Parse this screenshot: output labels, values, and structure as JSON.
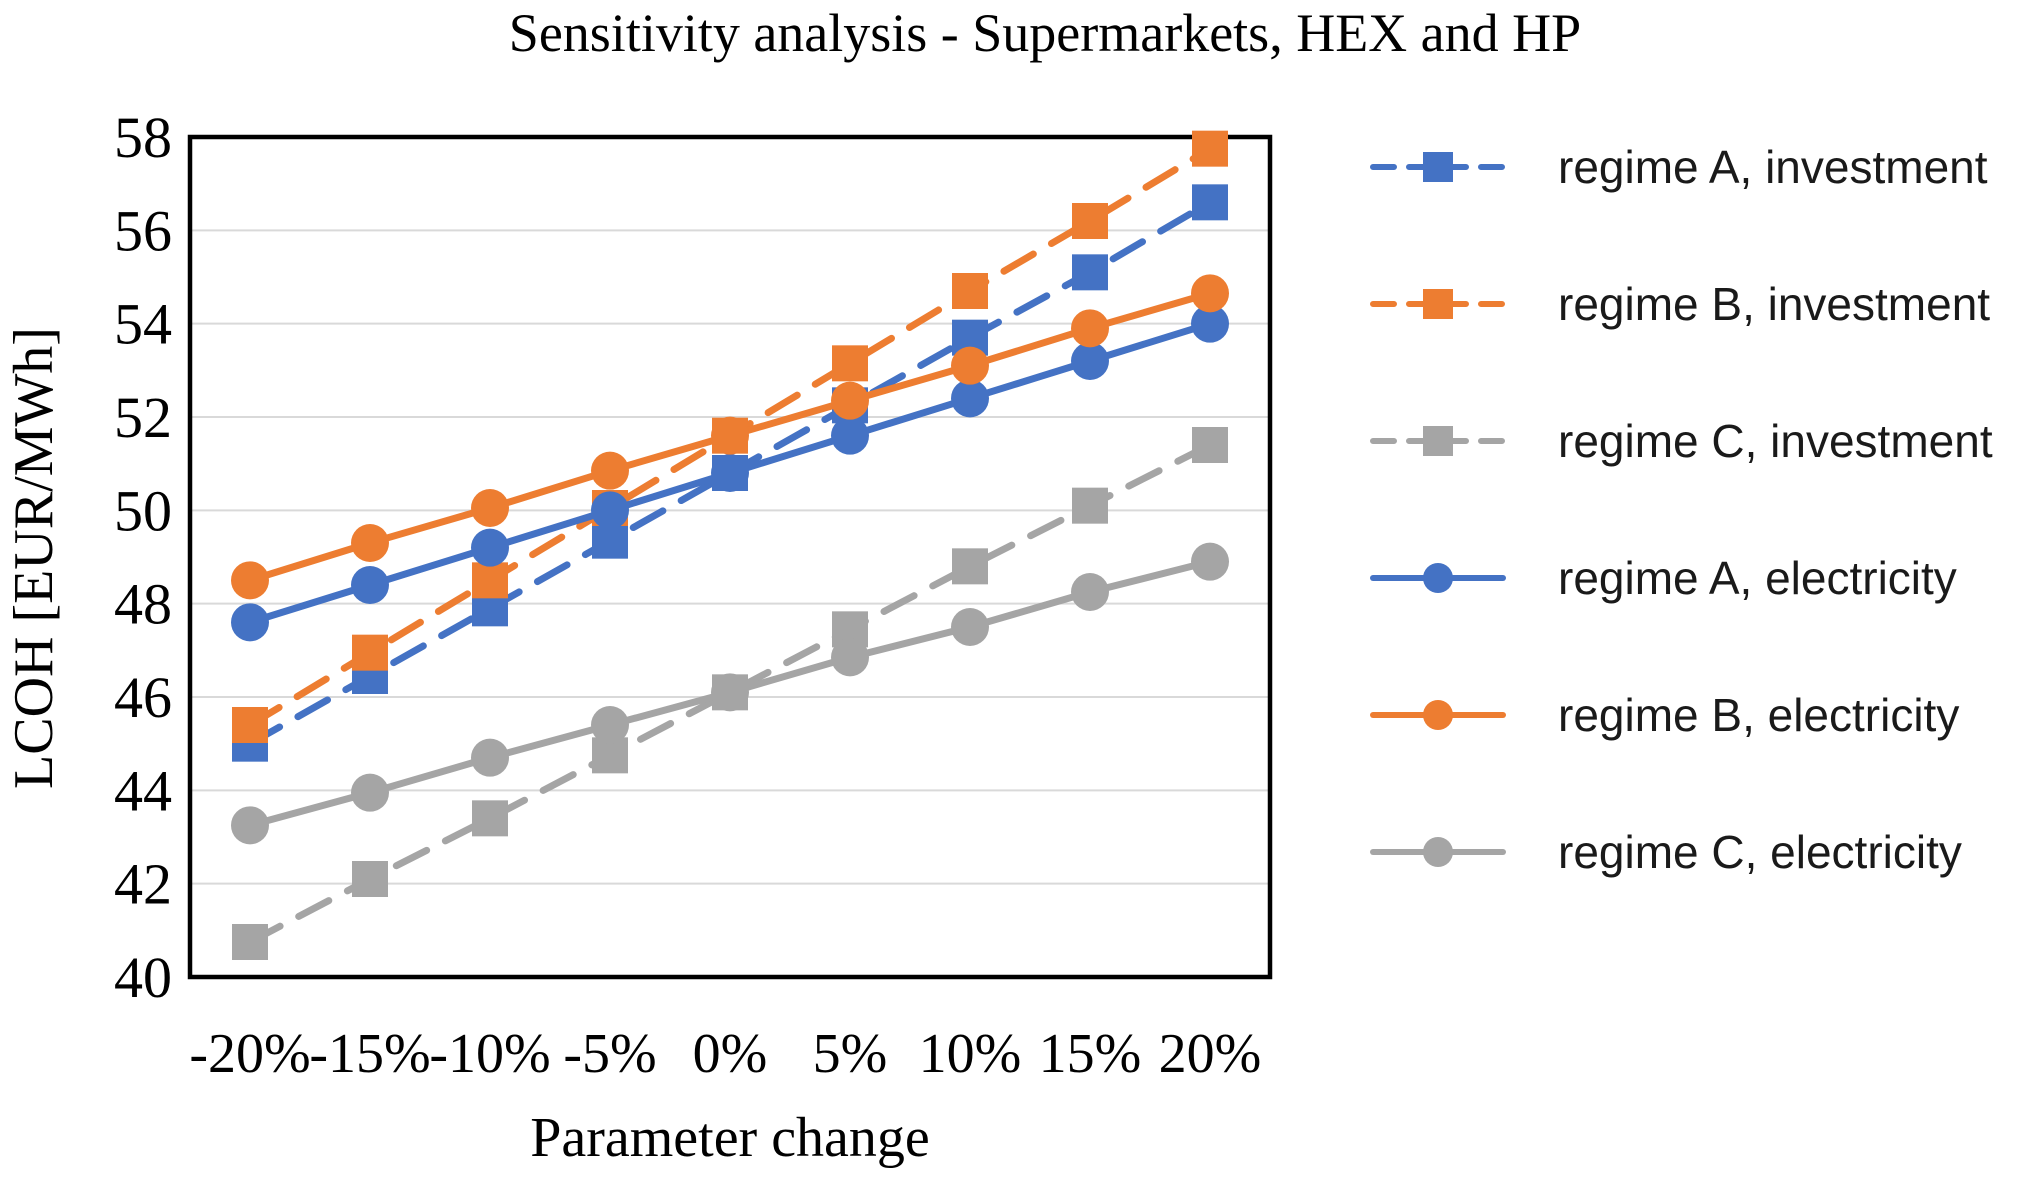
{
  "chart_data": {
    "type": "line",
    "title": "Sensitivity analysis - Supermarkets, HEX and HP",
    "xlabel": "Parameter change",
    "ylabel": "LCOH [EUR/MWh]",
    "categories": [
      "-20%",
      "-15%",
      "-10%",
      "-5%",
      "0%",
      "5%",
      "10%",
      "15%",
      "20%"
    ],
    "ylim": [
      40,
      58
    ],
    "yticks": [
      40,
      42,
      44,
      46,
      48,
      50,
      52,
      54,
      56,
      58
    ],
    "grid": "horizontal",
    "legend_position": "right",
    "series": [
      {
        "name": "regime A, investment",
        "color": "#4472C4",
        "line": "dashed",
        "marker": "square",
        "values": [
          45.0,
          46.45,
          47.9,
          49.35,
          50.8,
          52.25,
          53.7,
          55.1,
          56.6
        ]
      },
      {
        "name": "regime B, investment",
        "color": "#ED7D31",
        "line": "dashed",
        "marker": "square",
        "values": [
          45.4,
          46.95,
          48.5,
          50.05,
          51.6,
          53.15,
          54.7,
          56.2,
          57.75
        ]
      },
      {
        "name": "regime C, investment",
        "color": "#A5A5A5",
        "line": "dashed",
        "marker": "square",
        "values": [
          40.75,
          42.1,
          43.4,
          44.75,
          46.1,
          47.45,
          48.8,
          50.1,
          51.4
        ]
      },
      {
        "name": "regime A, electricity",
        "color": "#4472C4",
        "line": "solid",
        "marker": "circle",
        "values": [
          47.6,
          48.4,
          49.2,
          50.0,
          50.8,
          51.6,
          52.4,
          53.2,
          54.0
        ]
      },
      {
        "name": "regime B, electricity",
        "color": "#ED7D31",
        "line": "solid",
        "marker": "circle",
        "values": [
          48.5,
          49.3,
          50.05,
          50.85,
          51.6,
          52.35,
          53.1,
          53.9,
          54.65
        ]
      },
      {
        "name": "regime C, electricity",
        "color": "#A5A5A5",
        "line": "solid",
        "marker": "circle",
        "values": [
          43.25,
          43.95,
          44.7,
          45.4,
          46.1,
          46.85,
          47.5,
          48.25,
          48.9
        ]
      }
    ],
    "grid_color": "#D9D9D9",
    "frame_color": "#000000",
    "text_color": "#000000"
  }
}
